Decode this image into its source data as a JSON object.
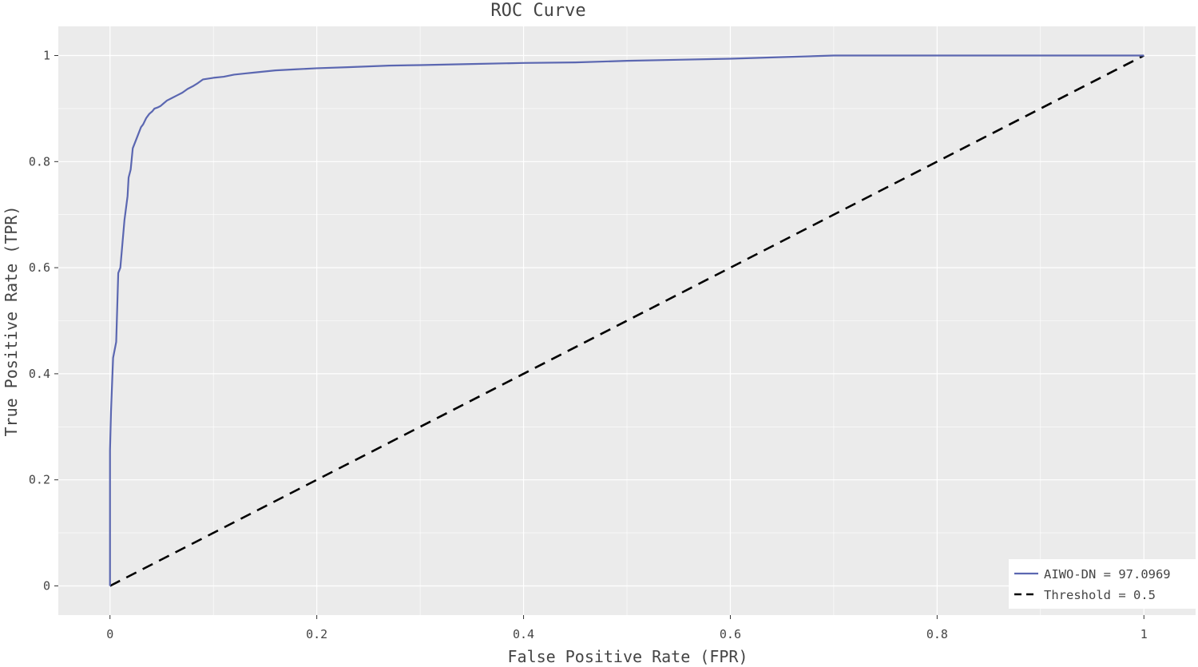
{
  "chart_data": {
    "type": "line",
    "title": "ROC Curve",
    "xlabel": "False Positive Rate (FPR)",
    "ylabel": "True Positive Rate (TPR)",
    "xlim": [
      -0.05,
      1.05
    ],
    "ylim": [
      -0.055,
      1.055
    ],
    "x_ticks": [
      0,
      0.2,
      0.4,
      0.6,
      0.8,
      1
    ],
    "x_tick_labels": [
      "0",
      "0.2",
      "0.4",
      "0.6",
      "0.8",
      "1"
    ],
    "y_ticks": [
      0,
      0.2,
      0.4,
      0.6,
      0.8,
      1
    ],
    "y_tick_labels": [
      "0",
      "0.2",
      "0.4",
      "0.6",
      "0.8",
      "1"
    ],
    "grid": true,
    "legend_position": "bottom-right",
    "series": [
      {
        "name": "AIWO-DN = 97.0969",
        "color": "#5b67b1",
        "style": "solid",
        "x": [
          0,
          0,
          0.001,
          0.003,
          0.006,
          0.008,
          0.009,
          0.01,
          0.012,
          0.014,
          0.016,
          0.017,
          0.018,
          0.02,
          0.022,
          0.024,
          0.026,
          0.028,
          0.03,
          0.032,
          0.035,
          0.038,
          0.041,
          0.043,
          0.046,
          0.049,
          0.052,
          0.055,
          0.06,
          0.065,
          0.07,
          0.075,
          0.08,
          0.085,
          0.09,
          0.1,
          0.11,
          0.12,
          0.13,
          0.14,
          0.16,
          0.18,
          0.2,
          0.23,
          0.27,
          0.3,
          0.35,
          0.4,
          0.45,
          0.5,
          0.55,
          0.6,
          0.65,
          0.7,
          0.75,
          0.8,
          0.9,
          1.0
        ],
        "y": [
          0,
          0.255,
          0.33,
          0.43,
          0.46,
          0.59,
          0.595,
          0.6,
          0.645,
          0.69,
          0.72,
          0.735,
          0.77,
          0.785,
          0.825,
          0.835,
          0.845,
          0.855,
          0.865,
          0.87,
          0.882,
          0.89,
          0.895,
          0.9,
          0.902,
          0.905,
          0.91,
          0.915,
          0.92,
          0.925,
          0.93,
          0.937,
          0.942,
          0.948,
          0.955,
          0.958,
          0.96,
          0.964,
          0.966,
          0.968,
          0.972,
          0.974,
          0.976,
          0.978,
          0.981,
          0.982,
          0.984,
          0.986,
          0.987,
          0.99,
          0.992,
          0.994,
          0.997,
          1.0,
          1.0,
          1.0,
          1.0,
          1.0
        ]
      },
      {
        "name": "Threshold = 0.5",
        "color": "#000000",
        "style": "dashed",
        "x": [
          0,
          1
        ],
        "y": [
          0,
          1
        ]
      }
    ]
  }
}
